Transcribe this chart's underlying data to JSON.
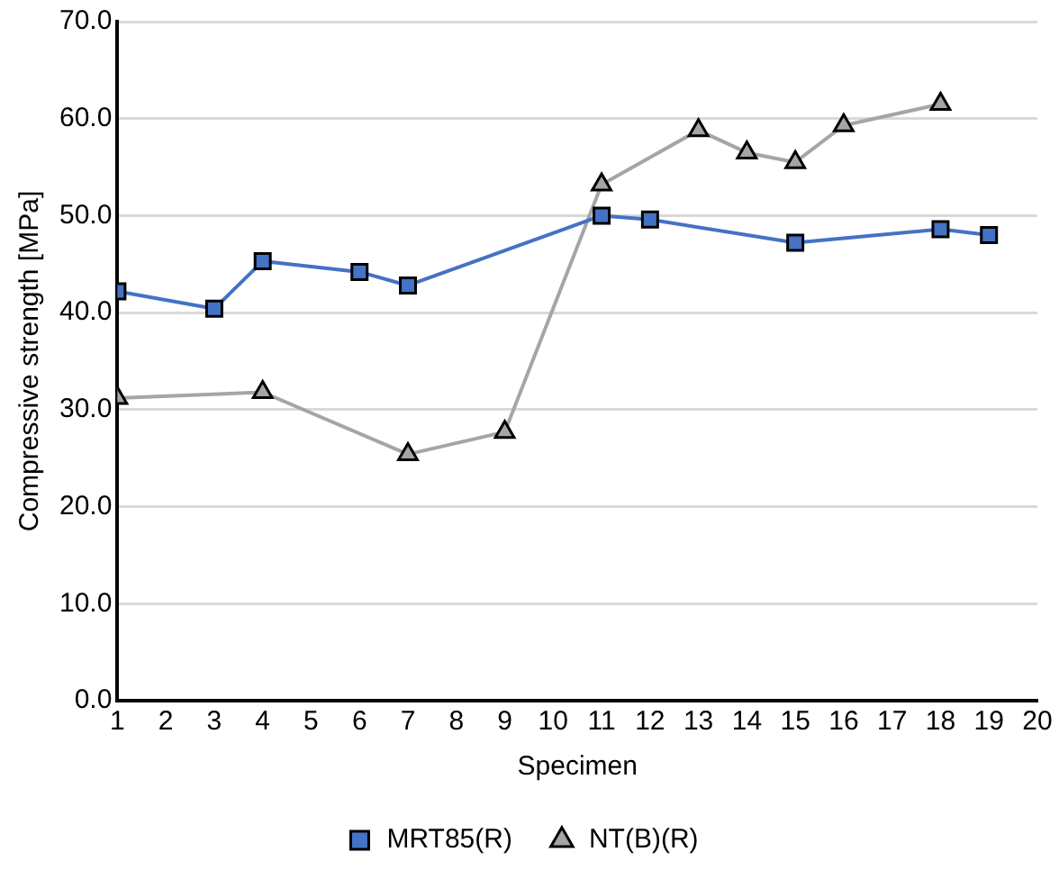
{
  "chart_data": {
    "type": "line",
    "xlabel": "Specimen",
    "ylabel": "Compressive strength [MPa]",
    "xlim": [
      1,
      20
    ],
    "xticks": [
      1,
      2,
      3,
      4,
      5,
      6,
      7,
      8,
      9,
      10,
      11,
      12,
      13,
      14,
      15,
      16,
      17,
      18,
      19,
      20
    ],
    "ylim": [
      0,
      70
    ],
    "yticks": [
      {
        "value": 0,
        "label": "0.0"
      },
      {
        "value": 10,
        "label": "10.0"
      },
      {
        "value": 20,
        "label": "20.0"
      },
      {
        "value": 30,
        "label": "30.0"
      },
      {
        "value": 40,
        "label": "40.0"
      },
      {
        "value": 50,
        "label": "50.0"
      },
      {
        "value": 60,
        "label": "60.0"
      },
      {
        "value": 70,
        "label": "70.0"
      }
    ],
    "grid": "y",
    "legend": "bottom",
    "series": [
      {
        "name": "MRT85(R)",
        "color": "#4472c4",
        "marker": "square",
        "x": [
          1,
          3,
          4,
          6,
          7,
          11,
          12,
          15,
          18,
          19
        ],
        "values": [
          42.2,
          40.4,
          45.3,
          44.2,
          42.8,
          50.0,
          49.6,
          47.2,
          48.6,
          48.0
        ]
      },
      {
        "name": "NT(B)(R)",
        "color": "#a5a5a5",
        "marker": "triangle",
        "x": [
          1,
          4,
          7,
          9,
          11,
          13,
          14,
          15,
          16,
          18
        ],
        "values": [
          31.2,
          31.8,
          25.4,
          27.7,
          53.2,
          58.8,
          56.5,
          55.5,
          59.3,
          61.5
        ]
      }
    ]
  }
}
